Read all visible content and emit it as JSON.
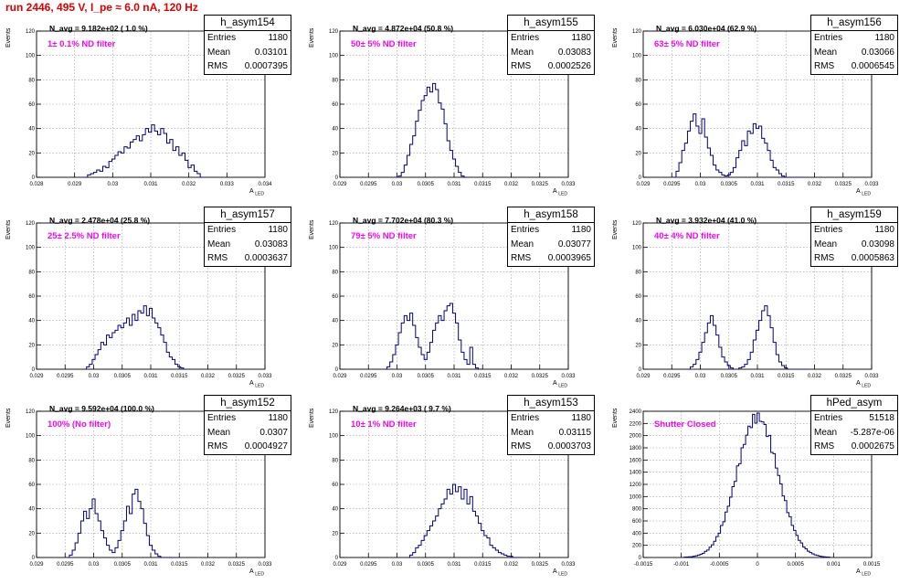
{
  "header": {
    "title": "run 2446,   495 V, I_pe ≈ 6.0 nA, 120 Hz"
  },
  "axis_labels": {
    "y": "Events",
    "x": "A",
    "x_sub": "LED"
  },
  "stat_labels": {
    "entries": "Entries",
    "mean": "Mean",
    "rms": "RMS"
  },
  "colors": {
    "hist": "#000080",
    "filter_text": "#ff00ff",
    "title_text": "#e00000",
    "grid": "#999999"
  },
  "chart_data": [
    {
      "type": "histogram",
      "name": "h_asym154",
      "entries": "1180",
      "mean": "0.03101",
      "rms": "0.0007395",
      "navg": "N_avg = 9.182e+02 ( 1.0 %)",
      "filter": "1± 0.1% ND filter",
      "xlim": [
        0.028,
        0.034
      ],
      "ylim": [
        0,
        120
      ],
      "xticks": [
        "0.028",
        "0.029",
        "0.03",
        "0.031",
        "0.032",
        "0.033",
        "0.034"
      ],
      "yticks": [
        "0",
        "20",
        "40",
        "60",
        "80",
        "100",
        "120"
      ],
      "x": [
        0.0293,
        0.02938,
        0.02946,
        0.02954,
        0.02962,
        0.0297,
        0.02978,
        0.02986,
        0.02994,
        0.03002,
        0.0301,
        0.03018,
        0.03026,
        0.03034,
        0.03042,
        0.0305,
        0.03058,
        0.03066,
        0.03074,
        0.03082,
        0.0309,
        0.03098,
        0.03106,
        0.03114,
        0.03122,
        0.0313,
        0.03138,
        0.03146,
        0.03154,
        0.03162,
        0.0317,
        0.03178,
        0.03186,
        0.03194,
        0.03202,
        0.0321,
        0.03218,
        0.03226,
        0.03234
      ],
      "y": [
        0,
        2,
        3,
        4,
        6,
        5,
        9,
        8,
        13,
        15,
        18,
        21,
        20,
        25,
        24,
        29,
        31,
        34,
        30,
        35,
        40,
        37,
        43,
        38,
        35,
        40,
        36,
        28,
        31,
        22,
        25,
        18,
        20,
        14,
        8,
        10,
        5,
        3,
        0
      ]
    },
    {
      "type": "histogram",
      "name": "h_asym155",
      "entries": "1180",
      "mean": "0.03083",
      "rms": "0.0002526",
      "navg": "N_avg = 4.872e+04 (50.8 %)",
      "filter": "50± 5% ND filter",
      "xlim": [
        0.029,
        0.033
      ],
      "ylim": [
        0,
        120
      ],
      "xticks": [
        "0.029",
        "0.0295",
        "0.03",
        "0.0305",
        "0.031",
        "0.0315",
        "0.032",
        "0.0325",
        "0.033"
      ],
      "yticks": [
        "0",
        "20",
        "40",
        "60",
        "80",
        "100",
        "120"
      ],
      "x": [
        0.03,
        0.03005,
        0.0301,
        0.03015,
        0.0302,
        0.03025,
        0.0303,
        0.03035,
        0.0304,
        0.03045,
        0.0305,
        0.03055,
        0.0306,
        0.03065,
        0.0307,
        0.03075,
        0.0308,
        0.03085,
        0.0309,
        0.03095,
        0.031,
        0.03105,
        0.0311,
        0.03115,
        0.0312,
        0.03125
      ],
      "y": [
        0,
        1,
        4,
        10,
        18,
        27,
        34,
        46,
        55,
        63,
        67,
        74,
        70,
        77,
        72,
        61,
        56,
        44,
        30,
        22,
        15,
        9,
        4,
        1,
        0,
        0
      ]
    },
    {
      "type": "histogram",
      "name": "h_asym156",
      "entries": "1180",
      "mean": "0.03066",
      "rms": "0.0006545",
      "navg": "N_avg = 6.030e+04 (62.9 %)",
      "filter": "63± 5% ND filter",
      "xlim": [
        0.029,
        0.033
      ],
      "ylim": [
        0,
        120
      ],
      "xticks": [
        "0.029",
        "0.0295",
        "0.03",
        "0.0305",
        "0.031",
        "0.0315",
        "0.032",
        "0.0325",
        "0.033"
      ],
      "yticks": [
        "0",
        "20",
        "40",
        "60",
        "80",
        "100",
        "120"
      ],
      "x": [
        0.02955,
        0.0296,
        0.02965,
        0.0297,
        0.02975,
        0.0298,
        0.02985,
        0.0299,
        0.02995,
        0.03,
        0.03005,
        0.0301,
        0.03015,
        0.0302,
        0.03025,
        0.0303,
        0.03035,
        0.0304,
        0.03045,
        0.0305,
        0.03055,
        0.0306,
        0.03065,
        0.0307,
        0.03075,
        0.0308,
        0.03085,
        0.0309,
        0.03095,
        0.031,
        0.03105,
        0.0311,
        0.03115,
        0.0312,
        0.03125,
        0.0313,
        0.03135,
        0.0314,
        0.03145,
        0.0315,
        0.03155,
        0.0316,
        0.03165,
        0.0317,
        0.03175,
        0.0318
      ],
      "y": [
        0,
        5,
        12,
        22,
        28,
        38,
        46,
        52,
        42,
        36,
        48,
        33,
        24,
        18,
        10,
        6,
        4,
        2,
        1,
        2,
        4,
        8,
        16,
        22,
        30,
        26,
        38,
        36,
        44,
        40,
        42,
        32,
        28,
        22,
        14,
        8,
        6,
        3,
        1,
        0,
        0,
        0,
        0,
        0,
        0,
        0
      ]
    },
    {
      "type": "histogram",
      "name": "h_asym157",
      "entries": "1180",
      "mean": "0.03083",
      "rms": "0.0003637",
      "navg": "N_avg = 2.478e+04 (25.8 %)",
      "filter": "25± 2.5% ND filter",
      "xlim": [
        0.029,
        0.033
      ],
      "ylim": [
        0,
        120
      ],
      "xticks": [
        "0.029",
        "0.0295",
        "0.03",
        "0.0305",
        "0.031",
        "0.0315",
        "0.032",
        "0.0325",
        "0.033"
      ],
      "yticks": [
        "0",
        "20",
        "40",
        "60",
        "80",
        "100",
        "120"
      ],
      "x": [
        0.02985,
        0.0299,
        0.02995,
        0.03,
        0.03005,
        0.0301,
        0.03015,
        0.0302,
        0.03025,
        0.0303,
        0.03035,
        0.0304,
        0.03045,
        0.0305,
        0.03055,
        0.0306,
        0.03065,
        0.0307,
        0.03075,
        0.0308,
        0.03085,
        0.0309,
        0.03095,
        0.031,
        0.03105,
        0.0311,
        0.03115,
        0.0312,
        0.03125,
        0.0313,
        0.03135,
        0.0314,
        0.03145,
        0.0315,
        0.03155,
        0.0316,
        0.03165
      ],
      "y": [
        0,
        2,
        4,
        8,
        12,
        16,
        22,
        20,
        28,
        26,
        30,
        32,
        36,
        34,
        38,
        42,
        36,
        45,
        40,
        48,
        46,
        52,
        44,
        50,
        42,
        38,
        34,
        28,
        22,
        14,
        10,
        8,
        4,
        2,
        1,
        0,
        0
      ]
    },
    {
      "type": "histogram",
      "name": "h_asym158",
      "entries": "1180",
      "mean": "0.03077",
      "rms": "0.0003965",
      "navg": "N_avg = 7.702e+04 (80.3 %)",
      "filter": "79± 5% ND filter",
      "xlim": [
        0.029,
        0.033
      ],
      "ylim": [
        0,
        120
      ],
      "xticks": [
        "0.029",
        "0.0295",
        "0.03",
        "0.0305",
        "0.031",
        "0.0315",
        "0.032",
        "0.0325",
        "0.033"
      ],
      "yticks": [
        "0",
        "20",
        "40",
        "60",
        "80",
        "100",
        "120"
      ],
      "x": [
        0.0298,
        0.02985,
        0.0299,
        0.02995,
        0.03,
        0.03005,
        0.0301,
        0.03015,
        0.0302,
        0.03025,
        0.0303,
        0.03035,
        0.0304,
        0.03045,
        0.0305,
        0.03055,
        0.0306,
        0.03065,
        0.0307,
        0.03075,
        0.0308,
        0.03085,
        0.0309,
        0.03095,
        0.031,
        0.03105,
        0.0311,
        0.03115,
        0.0312,
        0.03125,
        0.0313,
        0.03135,
        0.0314,
        0.03145
      ],
      "y": [
        0,
        2,
        6,
        12,
        20,
        30,
        38,
        44,
        40,
        46,
        36,
        26,
        18,
        12,
        8,
        14,
        22,
        32,
        38,
        44,
        40,
        48,
        52,
        54,
        46,
        38,
        24,
        14,
        8,
        4,
        18,
        4,
        1,
        0
      ]
    },
    {
      "type": "histogram",
      "name": "h_asym159",
      "entries": "1180",
      "mean": "0.03098",
      "rms": "0.0005863",
      "navg": "N_avg = 3.932e+04 (41.0 %)",
      "filter": "40± 4% ND filter",
      "xlim": [
        0.029,
        0.033
      ],
      "ylim": [
        0,
        120
      ],
      "xticks": [
        "0.029",
        "0.0295",
        "0.03",
        "0.0305",
        "0.031",
        "0.0315",
        "0.032",
        "0.0325",
        "0.033"
      ],
      "yticks": [
        "0",
        "20",
        "40",
        "60",
        "80",
        "100",
        "120"
      ],
      "x": [
        0.0298,
        0.02985,
        0.0299,
        0.02995,
        0.03,
        0.03005,
        0.0301,
        0.03015,
        0.0302,
        0.03025,
        0.0303,
        0.03035,
        0.0304,
        0.03045,
        0.0305,
        0.03055,
        0.0306,
        0.03065,
        0.0307,
        0.03075,
        0.0308,
        0.03085,
        0.0309,
        0.03095,
        0.031,
        0.03105,
        0.0311,
        0.03115,
        0.0312,
        0.03125,
        0.0313,
        0.03135,
        0.0314,
        0.03145,
        0.0315,
        0.03155,
        0.0316,
        0.03165,
        0.0317,
        0.03175,
        0.0318,
        0.03185
      ],
      "y": [
        0,
        2,
        4,
        8,
        14,
        22,
        30,
        38,
        44,
        36,
        28,
        18,
        10,
        6,
        3,
        1,
        0,
        0,
        1,
        2,
        4,
        8,
        14,
        24,
        32,
        40,
        48,
        52,
        44,
        34,
        22,
        12,
        6,
        3,
        1,
        0,
        0,
        0,
        0,
        0,
        0,
        0
      ]
    },
    {
      "type": "histogram",
      "name": "h_asym152",
      "entries": "1180",
      "mean": "0.0307",
      "rms": "0.0004927",
      "navg": "N_avg = 9.592e+04 (100.0 %)",
      "filter": "100% (No filter)",
      "xlim": [
        0.029,
        0.033
      ],
      "ylim": [
        0,
        120
      ],
      "xticks": [
        "0.029",
        "0.0295",
        "0.03",
        "0.0305",
        "0.031",
        "0.0315",
        "0.032",
        "0.0325",
        "0.033"
      ],
      "yticks": [
        "0",
        "20",
        "40",
        "60",
        "80",
        "100",
        "120"
      ],
      "x": [
        0.02955,
        0.0296,
        0.02965,
        0.0297,
        0.02975,
        0.0298,
        0.02985,
        0.0299,
        0.02995,
        0.03,
        0.03005,
        0.0301,
        0.03015,
        0.0302,
        0.03025,
        0.0303,
        0.03035,
        0.0304,
        0.03045,
        0.0305,
        0.03055,
        0.0306,
        0.03065,
        0.0307,
        0.03075,
        0.0308,
        0.03085,
        0.0309,
        0.03095,
        0.031,
        0.03105,
        0.0311,
        0.03115,
        0.0312,
        0.03125,
        0.0313,
        0.03135,
        0.0314,
        0.03145
      ],
      "y": [
        0,
        2,
        6,
        12,
        20,
        30,
        38,
        32,
        40,
        48,
        36,
        30,
        22,
        16,
        10,
        6,
        4,
        8,
        14,
        22,
        30,
        42,
        36,
        52,
        56,
        46,
        40,
        28,
        18,
        10,
        6,
        3,
        1,
        0,
        0,
        0,
        0,
        0,
        0
      ]
    },
    {
      "type": "histogram",
      "name": "h_asym153",
      "entries": "1180",
      "mean": "0.03115",
      "rms": "0.0003703",
      "navg": "N_avg = 9.264e+03 ( 9.7 %)",
      "filter": "10± 1% ND filter",
      "xlim": [
        0.029,
        0.033
      ],
      "ylim": [
        0,
        120
      ],
      "xticks": [
        "0.029",
        "0.0295",
        "0.03",
        "0.0305",
        "0.031",
        "0.0315",
        "0.032",
        "0.0325",
        "0.033"
      ],
      "yticks": [
        "0",
        "20",
        "40",
        "60",
        "80",
        "100",
        "120"
      ],
      "x": [
        0.0302,
        0.03025,
        0.0303,
        0.03035,
        0.0304,
        0.03045,
        0.0305,
        0.03055,
        0.0306,
        0.03065,
        0.0307,
        0.03075,
        0.0308,
        0.03085,
        0.0309,
        0.03095,
        0.031,
        0.03105,
        0.0311,
        0.03115,
        0.0312,
        0.03125,
        0.0313,
        0.03135,
        0.0314,
        0.03145,
        0.0315,
        0.03155,
        0.0316,
        0.03165,
        0.0317,
        0.03175,
        0.0318,
        0.03185,
        0.0319,
        0.03195,
        0.032,
        0.03205,
        0.0321,
        0.03215
      ],
      "y": [
        0,
        2,
        4,
        8,
        10,
        14,
        18,
        22,
        26,
        30,
        34,
        40,
        44,
        48,
        56,
        52,
        60,
        54,
        58,
        48,
        56,
        44,
        50,
        38,
        34,
        28,
        22,
        18,
        16,
        10,
        8,
        6,
        4,
        3,
        2,
        1,
        1,
        0,
        0,
        0
      ]
    },
    {
      "type": "histogram",
      "name": "hPed_asym",
      "entries": "51518",
      "mean": "-5.287e-06",
      "rms": "0.0002675",
      "navg": "",
      "filter": "Shutter Closed",
      "xlim": [
        -0.0015,
        0.0015
      ],
      "ylim": [
        0,
        2400
      ],
      "xticks": [
        "-0.0015",
        "-0.001",
        "-0.0005",
        "0",
        "0.0005",
        "0.001",
        "0.0015"
      ],
      "yticks": [
        "0",
        "200",
        "400",
        "600",
        "800",
        "1000",
        "1200",
        "1400",
        "1600",
        "1800",
        "2000",
        "2200",
        "2400"
      ],
      "gaussian": {
        "peak": 2300,
        "center": 0.0,
        "sigma": 0.00027,
        "bin": 3e-05,
        "range": [
          -0.00095,
          0.00095
        ]
      }
    }
  ]
}
